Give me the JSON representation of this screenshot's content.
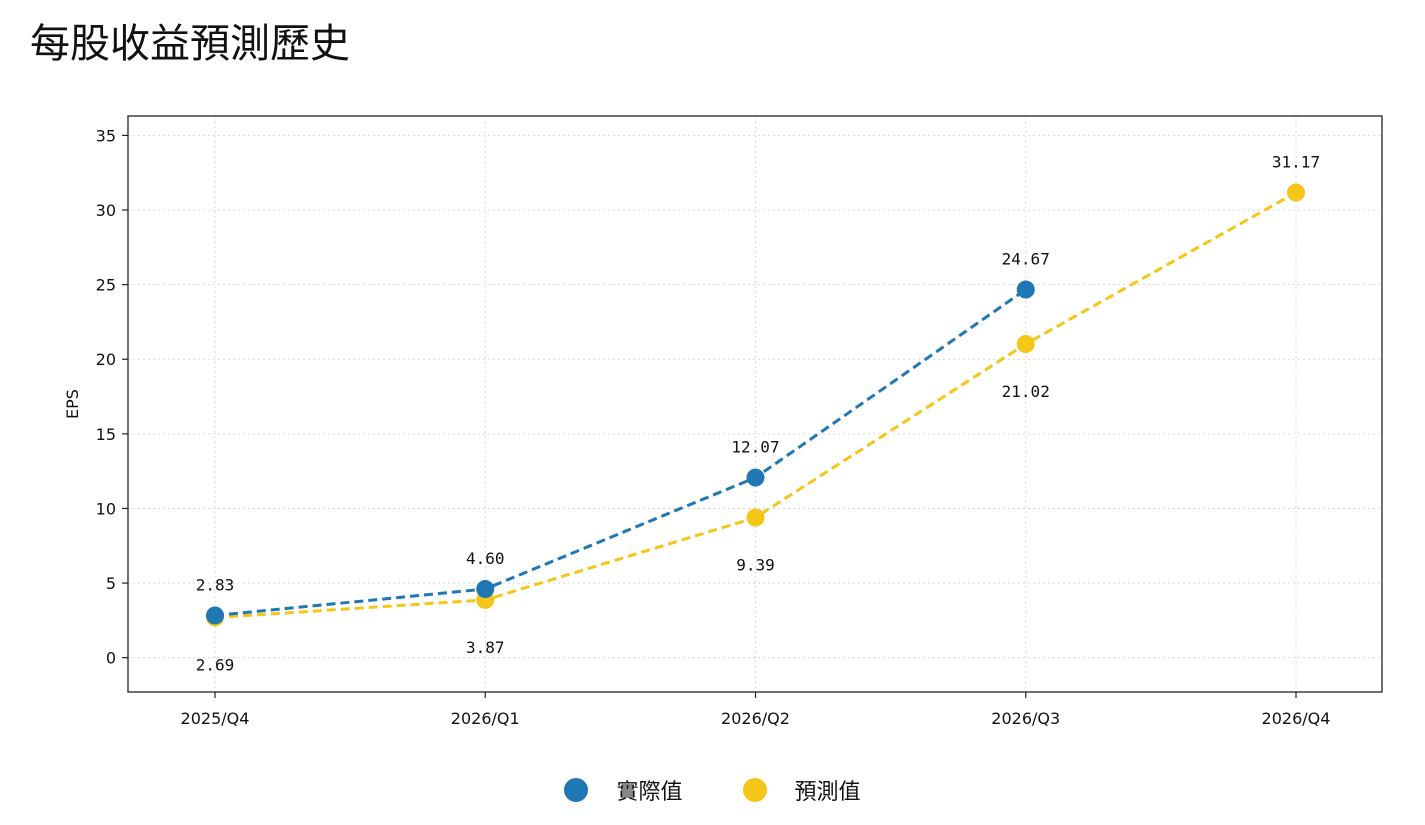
{
  "chart_data": {
    "type": "line",
    "title": "每股收益預測歷史",
    "xlabel": "",
    "ylabel": "EPS",
    "categories": [
      "2025/Q4",
      "2026/Q1",
      "2026/Q2",
      "2026/Q3",
      "2026/Q4"
    ],
    "ylim": [
      -2.3,
      36.3
    ],
    "yticks": [
      0,
      5,
      10,
      15,
      20,
      25,
      30,
      35
    ],
    "grid": true,
    "legend_position": "bottom-center",
    "series": [
      {
        "name": "實際值",
        "color": "#1f77b4",
        "values": [
          2.83,
          4.6,
          12.07,
          24.67,
          null
        ],
        "labels": [
          "2.83",
          "4.60",
          "12.07",
          "24.67",
          null
        ],
        "label_position": "above"
      },
      {
        "name": "預測值",
        "color": "#f5c518",
        "values": [
          2.69,
          3.87,
          9.39,
          21.02,
          31.17
        ],
        "labels": [
          "2.69",
          "3.87",
          "9.39",
          "21.02",
          "31.17"
        ],
        "label_position": "below-except-last"
      }
    ]
  }
}
